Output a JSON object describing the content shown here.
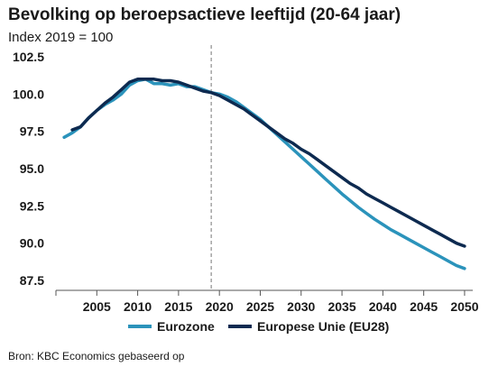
{
  "chart_data": {
    "type": "line",
    "title": "Bevolking op beroepsactieve leeftijd (20-64 jaar)",
    "subtitle": "Index 2019 = 100",
    "xlabel": "",
    "ylabel": "",
    "xlim": [
      2000,
      2051
    ],
    "ylim": [
      87.5,
      102.5
    ],
    "yticks": [
      "102.5",
      "100.0",
      "97.5",
      "95.0",
      "92.5",
      "90.0",
      "87.5"
    ],
    "xticks": [
      "2005",
      "2010",
      "2015",
      "2020",
      "2025",
      "2030",
      "2035",
      "2040",
      "2045",
      "2050"
    ],
    "reference_line": {
      "x": 2019,
      "style": "dashed"
    },
    "grid": false,
    "legend_position": "bottom",
    "series": [
      {
        "name": "Eurozone",
        "color": "#2b93bb",
        "x": [
          2001,
          2002,
          2003,
          2004,
          2005,
          2006,
          2007,
          2008,
          2009,
          2010,
          2011,
          2012,
          2013,
          2014,
          2015,
          2016,
          2017,
          2018,
          2019,
          2020,
          2021,
          2022,
          2023,
          2024,
          2025,
          2026,
          2027,
          2028,
          2029,
          2030,
          2031,
          2032,
          2033,
          2034,
          2035,
          2036,
          2037,
          2038,
          2039,
          2040,
          2041,
          2042,
          2043,
          2044,
          2045,
          2046,
          2047,
          2048,
          2049,
          2050
        ],
        "y": [
          97.1,
          97.4,
          97.8,
          98.4,
          98.9,
          99.3,
          99.6,
          100.0,
          100.6,
          100.9,
          101.0,
          100.7,
          100.7,
          100.6,
          100.7,
          100.5,
          100.5,
          100.3,
          100.1,
          100.0,
          99.8,
          99.5,
          99.1,
          98.7,
          98.3,
          97.8,
          97.3,
          96.8,
          96.3,
          95.8,
          95.3,
          94.8,
          94.3,
          93.8,
          93.3,
          92.85,
          92.4,
          92.0,
          91.6,
          91.25,
          90.9,
          90.6,
          90.3,
          90.0,
          89.7,
          89.4,
          89.1,
          88.8,
          88.5,
          88.3
        ]
      },
      {
        "name": "Europese Unie (EU28)",
        "color": "#0d2a50",
        "x": [
          2002,
          2003,
          2004,
          2005,
          2006,
          2007,
          2008,
          2009,
          2010,
          2011,
          2012,
          2013,
          2014,
          2015,
          2016,
          2017,
          2018,
          2019,
          2020,
          2021,
          2022,
          2023,
          2024,
          2025,
          2026,
          2027,
          2028,
          2029,
          2030,
          2031,
          2032,
          2033,
          2034,
          2035,
          2036,
          2037,
          2038,
          2039,
          2040,
          2041,
          2042,
          2043,
          2044,
          2045,
          2046,
          2047,
          2048,
          2049,
          2050
        ],
        "y": [
          97.6,
          97.8,
          98.4,
          98.9,
          99.4,
          99.8,
          100.3,
          100.8,
          101.0,
          101.0,
          101.0,
          100.9,
          100.9,
          100.8,
          100.6,
          100.4,
          100.2,
          100.1,
          99.9,
          99.6,
          99.3,
          99.0,
          98.6,
          98.2,
          97.8,
          97.4,
          97.0,
          96.7,
          96.3,
          96.0,
          95.6,
          95.2,
          94.8,
          94.4,
          94.0,
          93.7,
          93.3,
          93.0,
          92.7,
          92.4,
          92.1,
          91.8,
          91.5,
          91.2,
          90.9,
          90.6,
          90.3,
          90.0,
          89.8
        ]
      }
    ]
  },
  "source": "Bron: KBC Economics gebaseerd op"
}
